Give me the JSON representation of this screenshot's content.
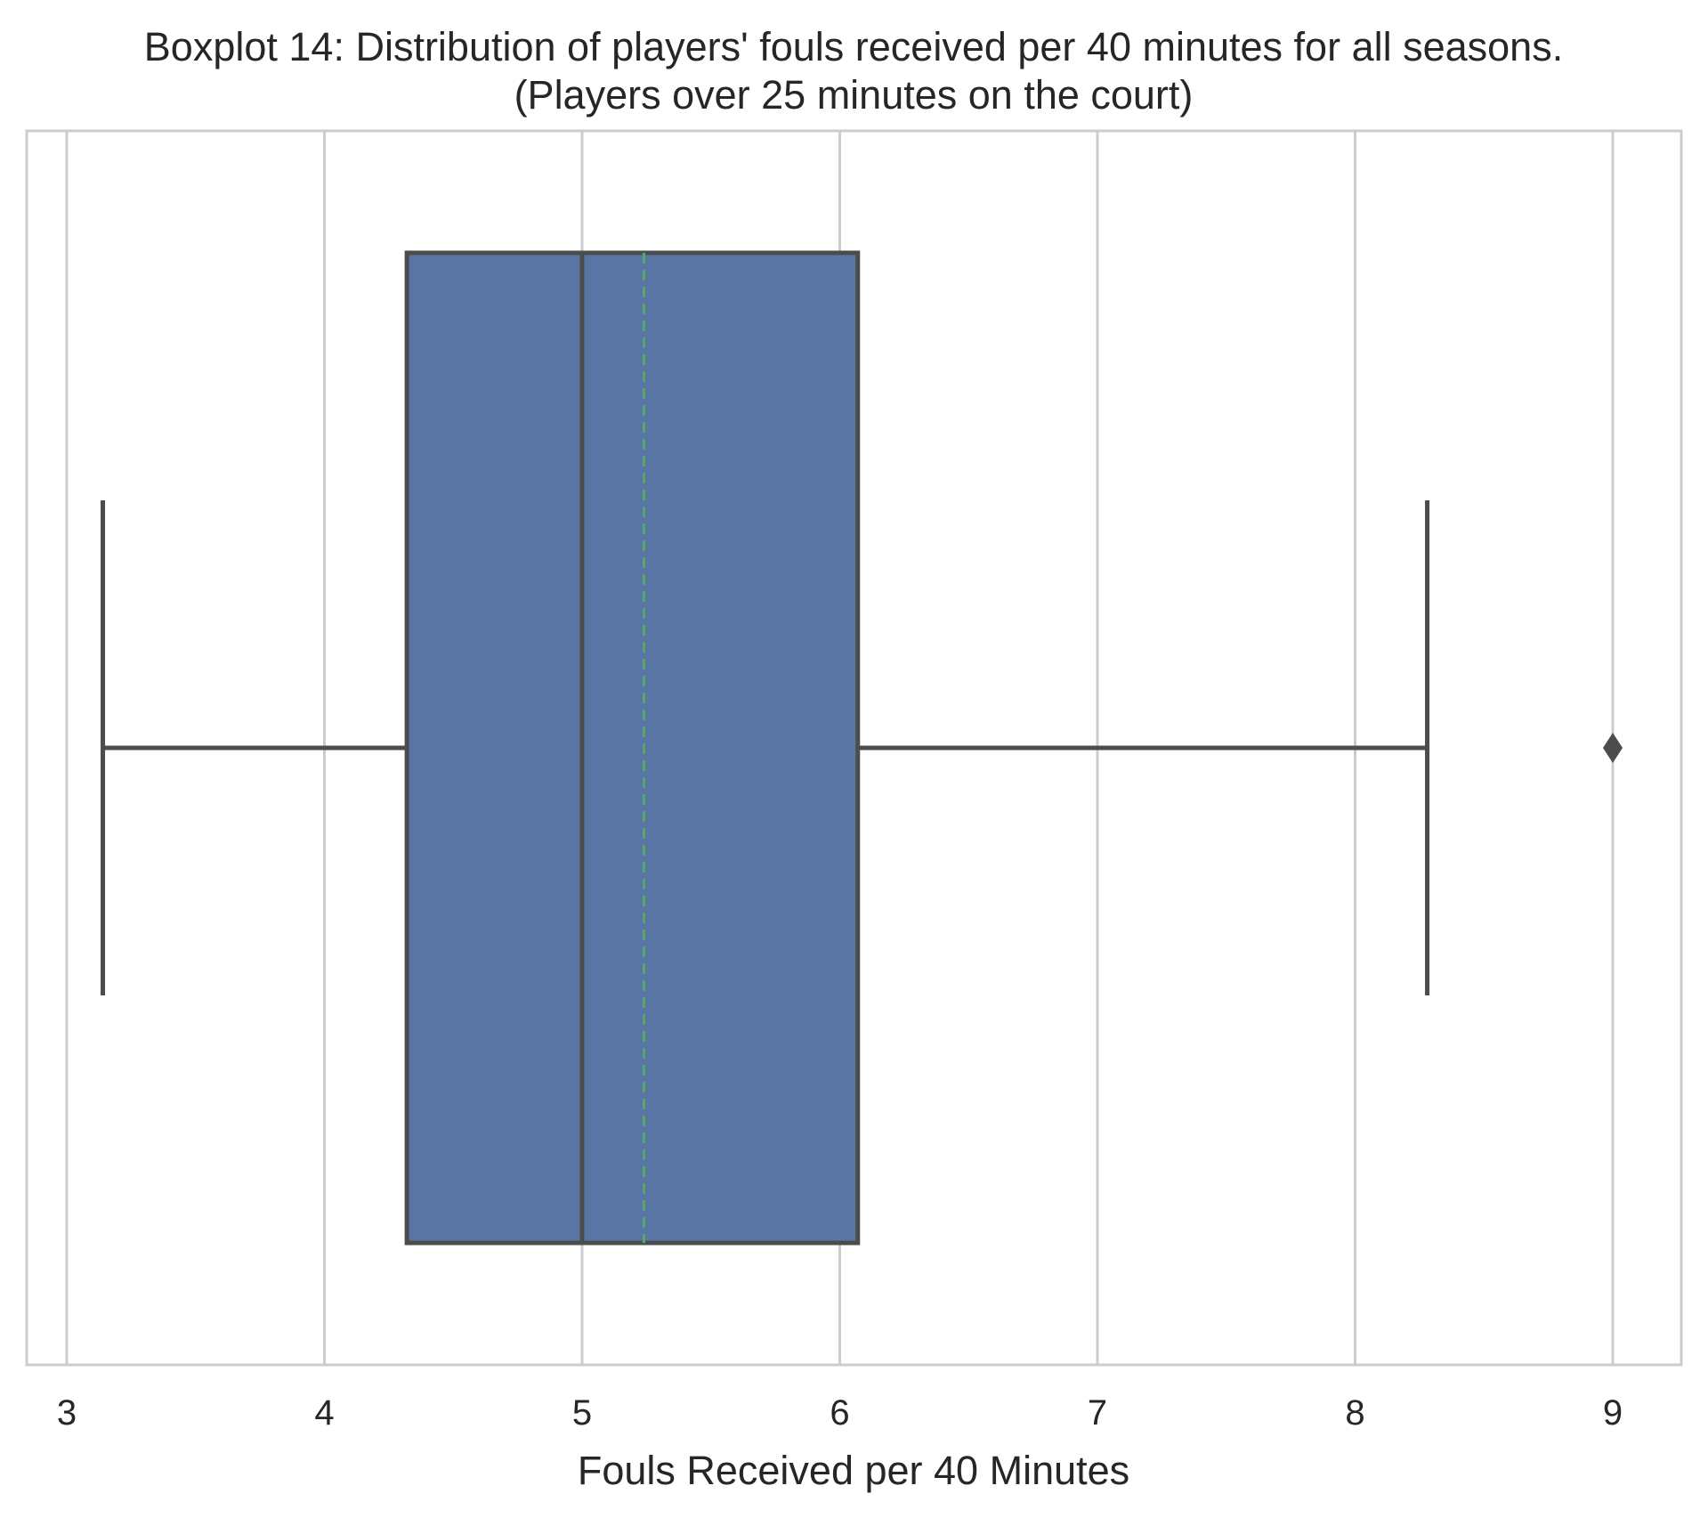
{
  "chart_data": {
    "type": "boxplot",
    "orientation": "horizontal",
    "title_line1": "Boxplot 14: Distribution of players' fouls received per 40 minutes for all seasons.",
    "title_line2": "(Players over 25 minutes on the court)",
    "xlabel": "Fouls Received per 40 Minutes",
    "ylabel": "",
    "xlim": [
      2.85,
      9.3
    ],
    "x_ticks": [
      3,
      4,
      5,
      6,
      7,
      8,
      9
    ],
    "x_tick_labels": [
      "3",
      "4",
      "5",
      "6",
      "7",
      "8",
      "9"
    ],
    "grid": "vertical",
    "stats": {
      "whisker_low": 3.14,
      "q1": 4.32,
      "median": 5.0,
      "mean": 5.24,
      "q3": 6.07,
      "whisker_high": 8.28
    },
    "outliers": [
      9.0
    ],
    "colors": {
      "box_fill": "#5975a4",
      "box_edge": "#4c4c4c",
      "mean_line": "#55a868",
      "grid": "#cccccc",
      "spine": "#cccccc"
    }
  }
}
